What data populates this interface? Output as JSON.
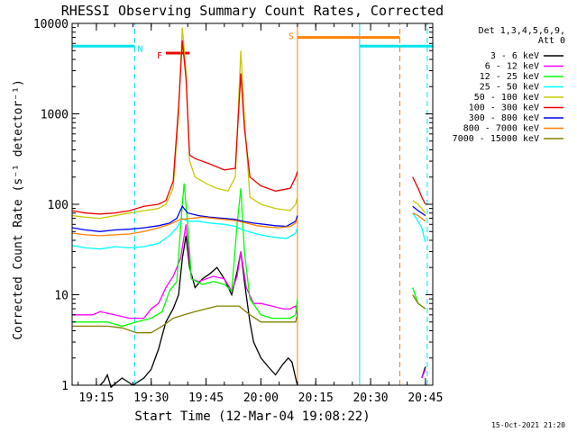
{
  "chart_data": {
    "type": "line",
    "title": "RHESSI Observing Summary Count Rates, Corrected",
    "xlabel": "Start Time (12-Mar-04 19:08:22)",
    "ylabel": "Corrected Count Rate (s⁻¹ detector⁻¹)",
    "yscale": "log",
    "xlim": [
      "19:08:22",
      "20:47:00"
    ],
    "ylim": [
      1,
      10000
    ],
    "x_ticks": [
      "19:15",
      "19:30",
      "19:45",
      "20:00",
      "20:15",
      "20:30",
      "20:45"
    ],
    "y_ticks": [
      "1",
      "10",
      "100",
      "1000",
      "10000"
    ],
    "legend_header": [
      "Det 1,3,4,5,6,9,",
      "Att 0"
    ],
    "legend_position": "right",
    "timestamp": "15-Oct-2021 21:20",
    "annotations": [
      {
        "label": "N",
        "type": "night",
        "color": "#00e5ee",
        "intervals": [
          [
            "19:08:22",
            "19:25:30"
          ],
          [
            "20:27:00",
            "20:47:00"
          ]
        ],
        "level": 5600,
        "dashed_ends": [
          "19:25:30",
          "20:45:30"
        ]
      },
      {
        "label": "F",
        "type": "flare",
        "color": "#ee0000",
        "intervals": [
          [
            "19:34:00",
            "19:40:30"
          ]
        ],
        "level": 4700
      },
      {
        "label": "S",
        "type": "saa",
        "color": "#ff7f00",
        "intervals": [
          [
            "20:10:00",
            "20:38:00"
          ]
        ],
        "level": 7000,
        "dashed_ends": [
          "20:38:00"
        ]
      }
    ],
    "gaps": [
      [
        "20:10:00",
        "20:41:30"
      ]
    ],
    "series": [
      {
        "name": "3 - 6 keV",
        "color": "#000000",
        "points": [
          [
            "19:16:00",
            1
          ],
          [
            "19:17:00",
            1.1
          ],
          [
            "19:18:00",
            1.3
          ],
          [
            "19:19:00",
            0.9
          ],
          [
            "19:22:00",
            1.2
          ],
          [
            "19:25:00",
            1
          ],
          [
            "19:28:00",
            1.2
          ],
          [
            "19:30:00",
            1.5
          ],
          [
            "19:32:00",
            2.5
          ],
          [
            "19:34:00",
            5
          ],
          [
            "19:36:00",
            7
          ],
          [
            "19:37:30",
            10
          ],
          [
            "19:38:30",
            25
          ],
          [
            "19:39:30",
            45
          ],
          [
            "19:40:30",
            20
          ],
          [
            "19:42:00",
            12
          ],
          [
            "19:44:00",
            15
          ],
          [
            "19:46:00",
            17
          ],
          [
            "19:48:00",
            20
          ],
          [
            "19:50:00",
            15
          ],
          [
            "19:52:00",
            10
          ],
          [
            "19:53:30",
            18
          ],
          [
            "19:54:30",
            30
          ],
          [
            "19:55:30",
            14
          ],
          [
            "19:57:00",
            5
          ],
          [
            "19:58:00",
            3
          ],
          [
            "20:00:00",
            2
          ],
          [
            "20:02:00",
            1.6
          ],
          [
            "20:04:00",
            1.3
          ],
          [
            "20:06:00",
            1.7
          ],
          [
            "20:07:30",
            2
          ],
          [
            "20:08:30",
            1.8
          ],
          [
            "20:09:30",
            1.2
          ],
          [
            "20:10:00",
            1
          ],
          [
            "null",
            null
          ],
          [
            "20:44:00",
            1.2
          ],
          [
            "20:45:00",
            1.6
          ]
        ]
      },
      {
        "name": "6 - 12 keV",
        "color": "#ff00ff",
        "points": [
          [
            "19:08:30",
            6
          ],
          [
            "19:14:00",
            6
          ],
          [
            "19:16:00",
            6.5
          ],
          [
            "19:20:00",
            6
          ],
          [
            "19:24:00",
            5.5
          ],
          [
            "19:28:00",
            5.5
          ],
          [
            "19:30:00",
            7
          ],
          [
            "19:32:00",
            8
          ],
          [
            "19:34:00",
            12
          ],
          [
            "19:36:00",
            16
          ],
          [
            "19:38:00",
            25
          ],
          [
            "19:39:30",
            60
          ],
          [
            "19:41:00",
            15
          ],
          [
            "19:43:00",
            14
          ],
          [
            "19:45:00",
            15
          ],
          [
            "19:47:00",
            16
          ],
          [
            "19:50:00",
            15
          ],
          [
            "19:52:00",
            11
          ],
          [
            "19:53:30",
            16
          ],
          [
            "19:54:30",
            30
          ],
          [
            "19:56:00",
            12
          ],
          [
            "19:58:00",
            8
          ],
          [
            "20:00:00",
            8
          ],
          [
            "20:03:00",
            7.5
          ],
          [
            "20:06:00",
            7
          ],
          [
            "20:08:00",
            7
          ],
          [
            "20:09:30",
            7.5
          ],
          [
            "20:10:00",
            6
          ],
          [
            "null",
            null
          ],
          [
            "20:44:00",
            1.2
          ],
          [
            "20:45:00",
            1.5
          ]
        ]
      },
      {
        "name": "12 - 25 keV",
        "color": "#00ff00",
        "points": [
          [
            "19:08:30",
            5
          ],
          [
            "19:14:00",
            5
          ],
          [
            "19:18:00",
            5
          ],
          [
            "19:22:00",
            4.5
          ],
          [
            "19:26:00",
            5
          ],
          [
            "19:30:00",
            5.5
          ],
          [
            "19:33:00",
            6.5
          ],
          [
            "19:35:00",
            11
          ],
          [
            "19:37:00",
            14
          ],
          [
            "19:38:30",
            100
          ],
          [
            "19:39:00",
            170
          ],
          [
            "19:40:00",
            60
          ],
          [
            "19:41:00",
            15
          ],
          [
            "19:44:00",
            13
          ],
          [
            "19:47:00",
            14
          ],
          [
            "19:50:00",
            13
          ],
          [
            "19:52:00",
            11
          ],
          [
            "19:53:30",
            60
          ],
          [
            "19:54:30",
            150
          ],
          [
            "19:55:30",
            30
          ],
          [
            "19:57:00",
            9
          ],
          [
            "20:00:00",
            6
          ],
          [
            "20:03:00",
            5.5
          ],
          [
            "20:06:00",
            5.5
          ],
          [
            "20:08:00",
            5.5
          ],
          [
            "20:09:30",
            6
          ],
          [
            "20:10:00",
            9
          ],
          [
            "null",
            null
          ],
          [
            "20:41:30",
            12
          ],
          [
            "20:43:00",
            8
          ],
          [
            "20:45:00",
            7
          ]
        ]
      },
      {
        "name": "25 - 50 keV",
        "color": "#00ffff",
        "points": [
          [
            "19:08:30",
            35
          ],
          [
            "19:12:00",
            33
          ],
          [
            "19:16:00",
            32
          ],
          [
            "19:20:00",
            34
          ],
          [
            "19:24:00",
            33
          ],
          [
            "19:28:00",
            34
          ],
          [
            "19:32:00",
            37
          ],
          [
            "19:35:00",
            45
          ],
          [
            "19:37:00",
            55
          ],
          [
            "19:38:30",
            70
          ],
          [
            "19:40:00",
            65
          ],
          [
            "19:43:00",
            65
          ],
          [
            "19:46:00",
            62
          ],
          [
            "19:50:00",
            60
          ],
          [
            "19:53:00",
            57
          ],
          [
            "19:55:00",
            52
          ],
          [
            "19:58:00",
            48
          ],
          [
            "20:01:00",
            45
          ],
          [
            "20:04:00",
            43
          ],
          [
            "20:07:00",
            42
          ],
          [
            "20:09:30",
            48
          ],
          [
            "20:10:00",
            55
          ],
          [
            "null",
            null
          ],
          [
            "20:41:30",
            80
          ],
          [
            "20:42:30",
            70
          ],
          [
            "20:44:00",
            55
          ],
          [
            "20:45:00",
            38
          ]
        ]
      },
      {
        "name": "50 - 100 keV",
        "color": "#c8c800",
        "points": [
          [
            "19:08:30",
            75
          ],
          [
            "19:12:00",
            72
          ],
          [
            "19:16:00",
            70
          ],
          [
            "19:20:00",
            75
          ],
          [
            "19:24:00",
            80
          ],
          [
            "19:28:00",
            85
          ],
          [
            "19:32:00",
            90
          ],
          [
            "19:34:00",
            100
          ],
          [
            "19:36:00",
            150
          ],
          [
            "19:37:30",
            1000
          ],
          [
            "19:38:30",
            9000
          ],
          [
            "19:39:30",
            3000
          ],
          [
            "19:40:30",
            300
          ],
          [
            "19:42:00",
            200
          ],
          [
            "19:45:00",
            170
          ],
          [
            "19:48:00",
            150
          ],
          [
            "19:51:00",
            140
          ],
          [
            "19:53:00",
            200
          ],
          [
            "19:54:30",
            5000
          ],
          [
            "19:55:30",
            900
          ],
          [
            "19:57:00",
            120
          ],
          [
            "20:00:00",
            100
          ],
          [
            "20:04:00",
            90
          ],
          [
            "20:08:00",
            85
          ],
          [
            "20:09:30",
            100
          ],
          [
            "20:10:00",
            120
          ],
          [
            "null",
            null
          ],
          [
            "20:41:30",
            110
          ],
          [
            "20:43:00",
            100
          ],
          [
            "20:45:00",
            80
          ]
        ]
      },
      {
        "name": "100 - 300 keV",
        "color": "#ee0000",
        "points": [
          [
            "19:08:30",
            85
          ],
          [
            "19:12:00",
            80
          ],
          [
            "19:16:00",
            78
          ],
          [
            "19:20:00",
            80
          ],
          [
            "19:24:00",
            85
          ],
          [
            "19:28:00",
            95
          ],
          [
            "19:32:00",
            100
          ],
          [
            "19:34:00",
            110
          ],
          [
            "19:36:00",
            180
          ],
          [
            "19:37:30",
            1200
          ],
          [
            "19:38:30",
            6500
          ],
          [
            "19:39:30",
            2500
          ],
          [
            "19:40:30",
            350
          ],
          [
            "19:42:00",
            320
          ],
          [
            "19:46:00",
            280
          ],
          [
            "19:50:00",
            240
          ],
          [
            "19:53:00",
            250
          ],
          [
            "19:54:30",
            2800
          ],
          [
            "19:55:30",
            700
          ],
          [
            "19:57:00",
            200
          ],
          [
            "20:00:00",
            160
          ],
          [
            "20:04:00",
            140
          ],
          [
            "20:08:00",
            150
          ],
          [
            "20:09:30",
            200
          ],
          [
            "20:10:00",
            230
          ],
          [
            "null",
            null
          ],
          [
            "20:41:30",
            200
          ],
          [
            "20:43:00",
            150
          ],
          [
            "20:44:00",
            120
          ],
          [
            "20:45:00",
            100
          ]
        ]
      },
      {
        "name": "300 - 800 keV",
        "color": "#0000ee",
        "points": [
          [
            "19:08:30",
            55
          ],
          [
            "19:12:00",
            52
          ],
          [
            "19:16:00",
            50
          ],
          [
            "19:20:00",
            52
          ],
          [
            "19:24:00",
            53
          ],
          [
            "19:28:00",
            55
          ],
          [
            "19:32:00",
            58
          ],
          [
            "19:35:00",
            62
          ],
          [
            "19:37:00",
            70
          ],
          [
            "19:38:30",
            95
          ],
          [
            "19:40:00",
            80
          ],
          [
            "19:43:00",
            75
          ],
          [
            "19:46:00",
            72
          ],
          [
            "19:50:00",
            70
          ],
          [
            "19:53:00",
            68
          ],
          [
            "19:55:00",
            65
          ],
          [
            "19:58:00",
            62
          ],
          [
            "20:01:00",
            60
          ],
          [
            "20:04:00",
            58
          ],
          [
            "20:07:00",
            57
          ],
          [
            "20:09:30",
            65
          ],
          [
            "20:10:00",
            75
          ],
          [
            "null",
            null
          ],
          [
            "20:41:30",
            95
          ],
          [
            "20:43:00",
            85
          ],
          [
            "20:45:00",
            75
          ]
        ]
      },
      {
        "name": "800 - 7000 keV",
        "color": "#ff7f00",
        "points": [
          [
            "19:08:30",
            48
          ],
          [
            "19:12:00",
            46
          ],
          [
            "19:16:00",
            45
          ],
          [
            "19:20:00",
            46
          ],
          [
            "19:24:00",
            47
          ],
          [
            "19:28:00",
            50
          ],
          [
            "19:32:00",
            55
          ],
          [
            "19:35:00",
            60
          ],
          [
            "19:38:00",
            68
          ],
          [
            "19:41:00",
            70
          ],
          [
            "19:44:00",
            72
          ],
          [
            "19:47:00",
            70
          ],
          [
            "19:50:00",
            68
          ],
          [
            "19:53:00",
            66
          ],
          [
            "19:56:00",
            62
          ],
          [
            "19:59:00",
            58
          ],
          [
            "20:02:00",
            56
          ],
          [
            "20:05:00",
            55
          ],
          [
            "20:08:00",
            57
          ],
          [
            "20:09:30",
            62
          ],
          [
            "20:10:00",
            70
          ],
          [
            "null",
            null
          ],
          [
            "20:41:30",
            80
          ],
          [
            "20:43:00",
            75
          ],
          [
            "20:45:00",
            65
          ]
        ]
      },
      {
        "name": "7000 - 15000 keV",
        "color": "#808000",
        "points": [
          [
            "19:08:30",
            4.5
          ],
          [
            "19:14:00",
            4.5
          ],
          [
            "19:18:00",
            4.5
          ],
          [
            "19:22:00",
            4.3
          ],
          [
            "19:26:00",
            3.8
          ],
          [
            "19:30:00",
            3.8
          ],
          [
            "19:33:00",
            4.5
          ],
          [
            "19:36:00",
            5.5
          ],
          [
            "19:39:00",
            6
          ],
          [
            "19:42:00",
            6.5
          ],
          [
            "19:45:00",
            7
          ],
          [
            "19:48:00",
            7.5
          ],
          [
            "19:51:00",
            7.5
          ],
          [
            "19:54:00",
            7.5
          ],
          [
            "19:57:00",
            6
          ],
          [
            "20:00:00",
            5
          ],
          [
            "20:03:00",
            5
          ],
          [
            "20:06:00",
            5
          ],
          [
            "20:09:30",
            5
          ],
          [
            "20:10:00",
            6
          ],
          [
            "null",
            null
          ],
          [
            "20:41:30",
            10
          ],
          [
            "20:43:00",
            8
          ],
          [
            "20:45:00",
            7
          ]
        ]
      }
    ]
  }
}
